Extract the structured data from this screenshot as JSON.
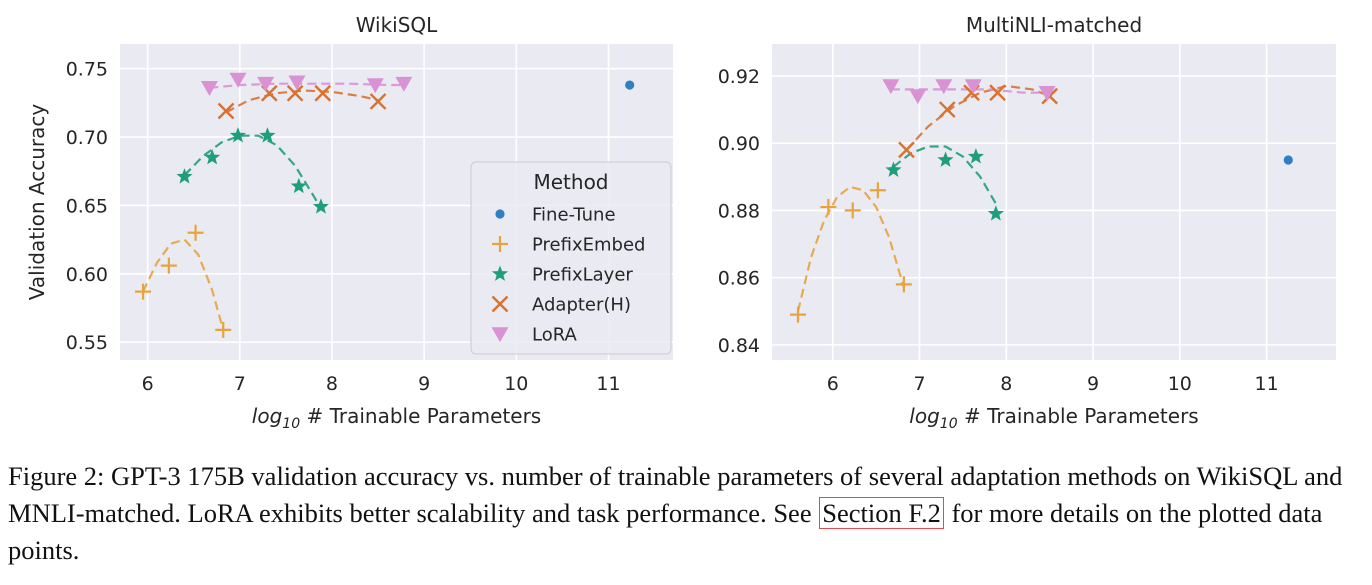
{
  "chart_data": [
    {
      "type": "scatter",
      "title": "WikiSQL",
      "xlabel_prefix": "log",
      "xlabel_sub": "10",
      "xlabel_rest": " # Trainable Parameters",
      "ylabel": "Validation Accuracy",
      "xlim": [
        5.7,
        11.7
      ],
      "ylim": [
        0.537,
        0.768
      ],
      "xticks": [
        6,
        7,
        8,
        9,
        10,
        11
      ],
      "yticks": [
        0.55,
        0.6,
        0.65,
        0.7,
        0.75
      ],
      "ytick_decimals": 2,
      "grid": true,
      "legend": {
        "title": "Method",
        "placement": "right",
        "entries": [
          "Fine-Tune",
          "PrefixEmbed",
          "PrefixLayer",
          "Adapter(H)",
          "LoRA"
        ]
      },
      "series": [
        {
          "name": "Fine-Tune",
          "marker": "dot",
          "color": "#2f7fc1",
          "x": [
            11.23
          ],
          "y": [
            0.738
          ],
          "fit": []
        },
        {
          "name": "PrefixEmbed",
          "marker": "plus",
          "color": "#e8a33d",
          "x": [
            5.95,
            6.23,
            6.52,
            6.82
          ],
          "y": [
            0.587,
            0.606,
            0.63,
            0.559
          ],
          "fit": [
            [
              5.95,
              0.587
            ],
            [
              6.1,
              0.608
            ],
            [
              6.25,
              0.622
            ],
            [
              6.4,
              0.625
            ],
            [
              6.55,
              0.614
            ],
            [
              6.7,
              0.588
            ],
            [
              6.82,
              0.559
            ]
          ]
        },
        {
          "name": "PrefixLayer",
          "marker": "star",
          "color": "#1f9e7c",
          "x": [
            6.4,
            6.7,
            6.98,
            7.3,
            7.64,
            7.88
          ],
          "y": [
            0.671,
            0.685,
            0.701,
            0.701,
            0.664,
            0.649
          ],
          "fit": [
            [
              6.4,
              0.672
            ],
            [
              6.6,
              0.686
            ],
            [
              6.8,
              0.696
            ],
            [
              7.0,
              0.701
            ],
            [
              7.2,
              0.701
            ],
            [
              7.4,
              0.694
            ],
            [
              7.6,
              0.679
            ],
            [
              7.8,
              0.657
            ],
            [
              7.88,
              0.648
            ]
          ]
        },
        {
          "name": "Adapter(H)",
          "marker": "x",
          "color": "#d9722d",
          "x": [
            6.85,
            7.32,
            7.6,
            7.9,
            8.5
          ],
          "y": [
            0.719,
            0.732,
            0.732,
            0.732,
            0.726
          ],
          "fit": [
            [
              6.85,
              0.718
            ],
            [
              7.1,
              0.727
            ],
            [
              7.4,
              0.732
            ],
            [
              7.7,
              0.734
            ],
            [
              8.0,
              0.733
            ],
            [
              8.3,
              0.73
            ],
            [
              8.5,
              0.727
            ]
          ]
        },
        {
          "name": "LoRA",
          "marker": "tri",
          "color": "#d992d4",
          "x": [
            6.67,
            6.98,
            7.28,
            7.62,
            8.47,
            8.78
          ],
          "y": [
            0.736,
            0.742,
            0.739,
            0.74,
            0.738,
            0.739
          ],
          "fit": [
            [
              6.67,
              0.736
            ],
            [
              7.0,
              0.738
            ],
            [
              7.4,
              0.739
            ],
            [
              7.8,
              0.739
            ],
            [
              8.2,
              0.739
            ],
            [
              8.6,
              0.738
            ],
            [
              8.78,
              0.738
            ]
          ]
        }
      ]
    },
    {
      "type": "scatter",
      "title": "MultiNLI-matched",
      "xlabel_prefix": "log",
      "xlabel_sub": "10",
      "xlabel_rest": " # Trainable Parameters",
      "ylabel": "",
      "xlim": [
        5.3,
        11.8
      ],
      "ylim": [
        0.8355,
        0.9295
      ],
      "xticks": [
        6,
        7,
        8,
        9,
        10,
        11
      ],
      "yticks": [
        0.84,
        0.86,
        0.88,
        0.9,
        0.92
      ],
      "ytick_decimals": 2,
      "grid": true,
      "series": [
        {
          "name": "Fine-Tune",
          "marker": "dot",
          "color": "#2f7fc1",
          "x": [
            11.25
          ],
          "y": [
            0.895
          ],
          "fit": []
        },
        {
          "name": "PrefixEmbed",
          "marker": "plus",
          "color": "#e8a33d",
          "x": [
            5.6,
            5.95,
            6.23,
            6.52,
            6.82
          ],
          "y": [
            0.849,
            0.881,
            0.88,
            0.886,
            0.858
          ],
          "fit": [
            [
              5.6,
              0.85
            ],
            [
              5.75,
              0.866
            ],
            [
              5.9,
              0.877
            ],
            [
              6.05,
              0.884
            ],
            [
              6.2,
              0.887
            ],
            [
              6.35,
              0.886
            ],
            [
              6.5,
              0.881
            ],
            [
              6.65,
              0.872
            ],
            [
              6.82,
              0.857
            ]
          ]
        },
        {
          "name": "PrefixLayer",
          "marker": "star",
          "color": "#1f9e7c",
          "x": [
            6.7,
            7.3,
            7.65,
            7.88
          ],
          "y": [
            0.892,
            0.895,
            0.896,
            0.879
          ],
          "fit": [
            [
              6.7,
              0.893
            ],
            [
              6.9,
              0.897
            ],
            [
              7.1,
              0.899
            ],
            [
              7.3,
              0.899
            ],
            [
              7.5,
              0.896
            ],
            [
              7.7,
              0.89
            ],
            [
              7.88,
              0.882
            ]
          ]
        },
        {
          "name": "Adapter(H)",
          "marker": "x",
          "color": "#d9722d",
          "x": [
            6.85,
            7.32,
            7.6,
            7.9,
            8.5
          ],
          "y": [
            0.898,
            0.91,
            0.915,
            0.915,
            0.914
          ],
          "fit": [
            [
              6.85,
              0.898
            ],
            [
              7.1,
              0.905
            ],
            [
              7.4,
              0.911
            ],
            [
              7.7,
              0.915
            ],
            [
              8.0,
              0.917
            ],
            [
              8.3,
              0.916
            ],
            [
              8.5,
              0.914
            ]
          ]
        },
        {
          "name": "LoRA",
          "marker": "tri",
          "color": "#d992d4",
          "x": [
            6.67,
            6.98,
            7.28,
            7.62,
            8.47
          ],
          "y": [
            0.917,
            0.914,
            0.917,
            0.917,
            0.915
          ],
          "fit": [
            [
              6.67,
              0.916
            ],
            [
              7.0,
              0.916
            ],
            [
              7.4,
              0.916
            ],
            [
              7.8,
              0.916
            ],
            [
              8.2,
              0.915
            ],
            [
              8.47,
              0.915
            ]
          ]
        }
      ]
    }
  ],
  "caption": {
    "text_before": "Figure 2: GPT-3 175B validation accuracy vs. number of trainable parameters of several adaptation methods on WikiSQL and MNLI-matched. LoRA exhibits better scalability and task performance. See ",
    "link_text": "Section F.2",
    "text_after": " for more details on the plotted data points."
  }
}
